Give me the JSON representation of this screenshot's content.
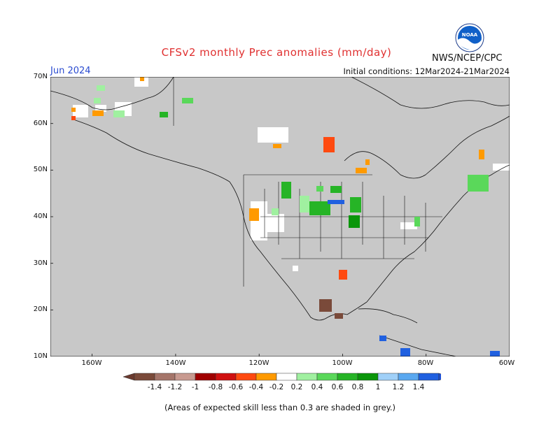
{
  "title": "CFSv2 monthly Prec anomalies (mm/day)",
  "org": "NWS/NCEP/CPC",
  "logo_text": "NOAA",
  "month": "Jun 2024",
  "initial_conditions": "Initial conditions: 12Mar2024-21Mar2024",
  "footnote": "(Areas of expected skill less than 0.3 are shaded in grey.)",
  "lat_labels": [
    "70N",
    "60N",
    "50N",
    "40N",
    "30N",
    "20N",
    "10N"
  ],
  "lon_labels": [
    "160W",
    "140W",
    "120W",
    "100W",
    "80W",
    "60W"
  ],
  "colorbar": {
    "labels": [
      "-1.4",
      "-1.2",
      "-1",
      "-0.8",
      "-0.6",
      "-0.4",
      "-0.2",
      "0.2",
      "0.4",
      "0.6",
      "0.8",
      "1",
      "1.2",
      "1.4"
    ],
    "colors": [
      "#7a4a3a",
      "#a5756a",
      "#c89a90",
      "#a00000",
      "#d01010",
      "#ff4a10",
      "#ff9a00",
      "#ffffff",
      "#a0f0a0",
      "#5ad85a",
      "#26b426",
      "#0a960a",
      "#a0d0f8",
      "#5aa8f0",
      "#2060e0"
    ],
    "left_end": "#6b3a2e",
    "right_end": "#1e50d8"
  },
  "colors": {
    "skill_mask": "#c8c8c8",
    "land_white": "#ffffff",
    "title_red": "#e03030",
    "month_blue": "#2a4bd0"
  }
}
